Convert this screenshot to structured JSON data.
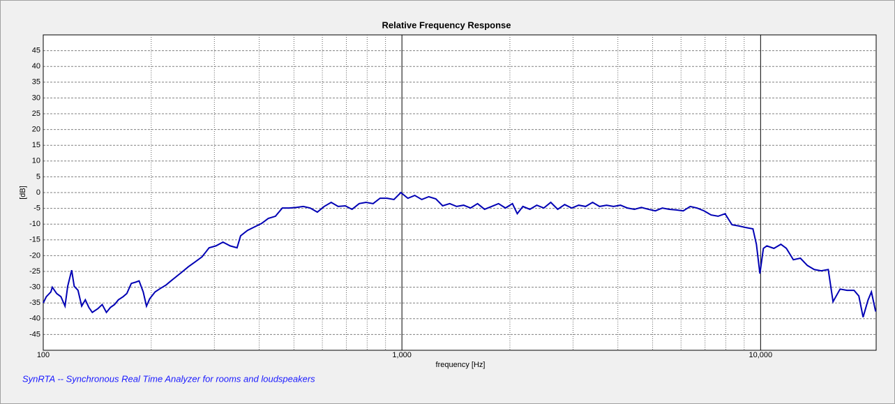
{
  "chart_data": {
    "type": "line",
    "title": "Relative Frequency Response",
    "xlabel": "frequency [Hz]",
    "ylabel": "[dB]",
    "annotation": "SynRTA -- Synchronous Real Time Analyzer for rooms and loudspeakers",
    "xscale": "log",
    "grid": true,
    "color": "#0000b4",
    "xlim": [
      100,
      21000
    ],
    "ylim": [
      -50,
      50
    ],
    "xticks": [
      100,
      {
        "value": 1000,
        "label": "1,000"
      },
      {
        "value": 10000,
        "label": "10,000"
      }
    ],
    "xminorticks": [
      200,
      300,
      400,
      500,
      600,
      700,
      800,
      900,
      2000,
      3000,
      4000,
      5000,
      6000,
      7000,
      8000,
      9000
    ],
    "yticks": [
      -45,
      -40,
      -35,
      -30,
      -25,
      -20,
      -15,
      -10,
      -5,
      0,
      5,
      10,
      15,
      20,
      25,
      30,
      35,
      40,
      45
    ],
    "x": [
      100,
      102,
      105,
      106,
      109,
      112,
      115,
      117,
      120,
      122,
      125,
      128,
      131,
      134,
      137,
      142,
      146,
      150,
      154,
      158,
      162,
      167,
      171,
      176,
      181,
      185,
      190,
      194,
      198,
      205,
      212,
      220,
      227,
      234,
      243,
      254,
      265,
      277,
      290,
      303,
      317,
      332,
      347,
      355,
      371,
      388,
      406,
      424,
      444,
      464,
      485,
      508,
      531,
      555,
      581,
      607,
      635,
      664,
      695,
      726,
      760,
      794,
      831,
      869,
      909,
      950,
      993,
      1039,
      1086,
      1136,
      1188,
      1243,
      1299,
      1359,
      1421,
      1486,
      1554,
      1625,
      1700,
      1778,
      1859,
      1944,
      2033,
      2097,
      2174,
      2273,
      2377,
      2486,
      2600,
      2719,
      2843,
      2974,
      3110,
      3252,
      3401,
      3556,
      3719,
      3890,
      4068,
      4254,
      4449,
      4652,
      4865,
      5088,
      5321,
      5564,
      5819,
      6085,
      6364,
      6655,
      6960,
      7278,
      7611,
      7960,
      8324,
      8705,
      9103,
      9520,
      9735,
      9956,
      10180,
      10410,
      10890,
      11390,
      11800,
      12340,
      12910,
      13500,
      14110,
      14760,
      15440,
      15920,
      16660,
      17420,
      18220,
      18790,
      19310,
      19930,
      20370,
      20930
    ],
    "values": [
      -35,
      -33,
      -31.5,
      -30,
      -32,
      -33,
      -36,
      -29.7,
      -24.6,
      -29.7,
      -31,
      -36,
      -34,
      -36.4,
      -38,
      -36.8,
      -35.5,
      -38,
      -36.4,
      -35.5,
      -34,
      -33,
      -32,
      -28.8,
      -28.4,
      -28,
      -31.5,
      -36,
      -33.7,
      -31.5,
      -30.4,
      -29.3,
      -28,
      -26.8,
      -25.3,
      -23.5,
      -22,
      -20.4,
      -17.5,
      -16.9,
      -15.7,
      -16.9,
      -17.5,
      -13.7,
      -12,
      -10.9,
      -9.8,
      -8.2,
      -7.5,
      -4.9,
      -4.9,
      -4.7,
      -4.4,
      -4.9,
      -6.2,
      -4.4,
      -3.1,
      -4.4,
      -4.2,
      -5.3,
      -3.5,
      -3.1,
      -3.5,
      -1.8,
      -1.8,
      -2.2,
      0,
      -1.8,
      -0.9,
      -2.2,
      -1.3,
      -2,
      -4.2,
      -3.5,
      -4.4,
      -4,
      -4.9,
      -3.5,
      -5.3,
      -4.4,
      -3.5,
      -4.9,
      -3.5,
      -6.7,
      -4.4,
      -5.3,
      -4,
      -4.9,
      -3.1,
      -5.3,
      -3.8,
      -4.9,
      -4,
      -4.4,
      -3.1,
      -4.4,
      -4,
      -4.4,
      -4,
      -4.9,
      -5.3,
      -4.7,
      -5.3,
      -5.8,
      -4.9,
      -5.3,
      -5.5,
      -5.8,
      -4.4,
      -4.9,
      -5.8,
      -7.1,
      -7.5,
      -6.7,
      -10.2,
      -10.6,
      -11.1,
      -11.5,
      -16.4,
      -25.7,
      -17.7,
      -16.9,
      -17.7,
      -16.4,
      -17.7,
      -21.3,
      -20.8,
      -23.1,
      -24.4,
      -24.8,
      -24.4,
      -34.6,
      -30.6,
      -31,
      -31,
      -32.8,
      -39.5,
      -34.1,
      -31.5,
      -37.7
    ]
  }
}
